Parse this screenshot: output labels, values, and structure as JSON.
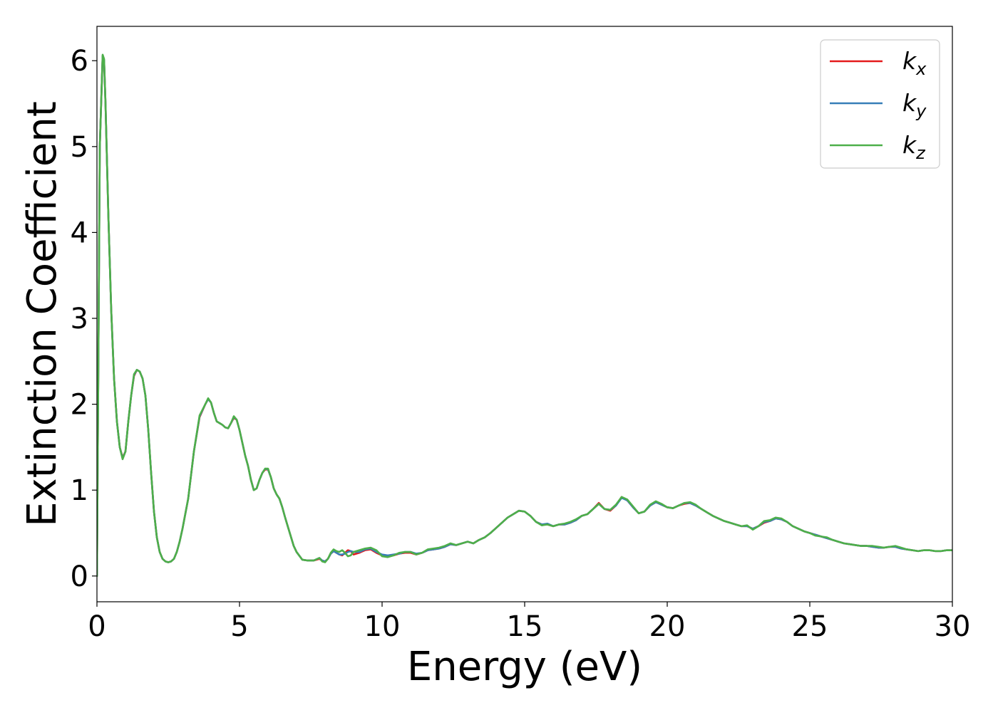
{
  "chart_data": {
    "type": "line",
    "title": "",
    "xlabel": "Energy (eV)",
    "ylabel": "Extinction Coefficient",
    "xlim": [
      0,
      30
    ],
    "ylim": [
      -0.3,
      6.4
    ],
    "xticks": [
      0,
      5,
      10,
      15,
      20,
      25,
      30
    ],
    "yticks": [
      0,
      1,
      2,
      3,
      4,
      5,
      6
    ],
    "grid": false,
    "legend_position": "top-right",
    "series": [
      {
        "name": "k_x",
        "legend_base": "k",
        "legend_sub": "x",
        "color": "#e41a1c",
        "x": [
          0,
          0.05,
          0.1,
          0.2,
          0.25,
          0.3,
          0.4,
          0.5,
          0.6,
          0.7,
          0.8,
          0.9,
          1.0,
          1.1,
          1.2,
          1.3,
          1.4,
          1.5,
          1.6,
          1.7,
          1.8,
          1.9,
          2.0,
          2.1,
          2.2,
          2.3,
          2.4,
          2.5,
          2.6,
          2.7,
          2.8,
          2.9,
          3.0,
          3.2,
          3.4,
          3.6,
          3.8,
          3.9,
          4.0,
          4.1,
          4.2,
          4.3,
          4.4,
          4.5,
          4.6,
          4.7,
          4.8,
          4.9,
          5.0,
          5.1,
          5.2,
          5.3,
          5.4,
          5.5,
          5.6,
          5.7,
          5.8,
          5.9,
          6.0,
          6.1,
          6.2,
          6.3,
          6.4,
          6.5,
          6.6,
          6.7,
          6.8,
          6.9,
          7.0,
          7.2,
          7.4,
          7.6,
          7.8,
          7.9,
          8.0,
          8.1,
          8.2,
          8.3,
          8.4,
          8.5,
          8.6,
          8.7,
          8.8,
          8.9,
          9.0,
          9.2,
          9.4,
          9.6,
          9.8,
          10.0,
          10.2,
          10.4,
          10.6,
          10.8,
          11.0,
          11.2,
          11.4,
          11.6,
          11.8,
          12.0,
          12.2,
          12.4,
          12.6,
          12.8,
          13.0,
          13.2,
          13.4,
          13.6,
          13.8,
          14.0,
          14.2,
          14.4,
          14.6,
          14.8,
          15.0,
          15.2,
          15.4,
          15.6,
          15.8,
          16.0,
          16.2,
          16.4,
          16.6,
          16.8,
          17.0,
          17.2,
          17.4,
          17.6,
          17.8,
          18.0,
          18.2,
          18.4,
          18.6,
          18.8,
          19.0,
          19.2,
          19.4,
          19.6,
          19.8,
          20.0,
          20.2,
          20.4,
          20.6,
          20.8,
          21.0,
          21.2,
          21.4,
          21.6,
          21.8,
          22.0,
          22.2,
          22.4,
          22.6,
          22.8,
          23.0,
          23.2,
          23.4,
          23.6,
          23.8,
          24.0,
          24.2,
          24.4,
          24.6,
          24.8,
          25.0,
          25.2,
          25.4,
          25.6,
          25.8,
          26.0,
          26.2,
          26.4,
          26.6,
          26.8,
          27.0,
          27.2,
          27.4,
          27.6,
          27.8,
          28.0,
          28.2,
          28.4,
          28.6,
          28.8,
          29.0,
          29.2,
          29.4,
          29.6,
          29.8,
          30.0
        ],
        "y": [
          0.0,
          2.5,
          5.0,
          6.05,
          6.0,
          5.5,
          4.2,
          3.1,
          2.3,
          1.8,
          1.5,
          1.38,
          1.45,
          1.8,
          2.1,
          2.33,
          2.4,
          2.38,
          2.3,
          2.1,
          1.7,
          1.2,
          0.75,
          0.45,
          0.28,
          0.2,
          0.17,
          0.16,
          0.17,
          0.2,
          0.28,
          0.4,
          0.55,
          0.9,
          1.45,
          1.85,
          2.0,
          2.06,
          2.02,
          1.9,
          1.8,
          1.78,
          1.76,
          1.73,
          1.72,
          1.78,
          1.84,
          1.82,
          1.7,
          1.55,
          1.4,
          1.28,
          1.12,
          1.0,
          1.02,
          1.12,
          1.2,
          1.24,
          1.24,
          1.15,
          1.02,
          0.95,
          0.9,
          0.8,
          0.68,
          0.57,
          0.46,
          0.35,
          0.28,
          0.19,
          0.18,
          0.18,
          0.2,
          0.18,
          0.17,
          0.2,
          0.26,
          0.29,
          0.27,
          0.25,
          0.24,
          0.27,
          0.3,
          0.29,
          0.25,
          0.27,
          0.3,
          0.31,
          0.27,
          0.24,
          0.24,
          0.24,
          0.26,
          0.27,
          0.27,
          0.25,
          0.27,
          0.3,
          0.31,
          0.32,
          0.34,
          0.37,
          0.36,
          0.38,
          0.4,
          0.38,
          0.42,
          0.45,
          0.5,
          0.56,
          0.62,
          0.68,
          0.72,
          0.76,
          0.75,
          0.7,
          0.63,
          0.6,
          0.6,
          0.58,
          0.6,
          0.6,
          0.62,
          0.65,
          0.7,
          0.72,
          0.78,
          0.85,
          0.78,
          0.76,
          0.82,
          0.92,
          0.88,
          0.8,
          0.73,
          0.75,
          0.82,
          0.86,
          0.83,
          0.8,
          0.79,
          0.82,
          0.84,
          0.85,
          0.82,
          0.78,
          0.74,
          0.7,
          0.67,
          0.64,
          0.62,
          0.6,
          0.58,
          0.58,
          0.55,
          0.58,
          0.62,
          0.64,
          0.67,
          0.66,
          0.63,
          0.58,
          0.55,
          0.52,
          0.5,
          0.48,
          0.46,
          0.44,
          0.42,
          0.4,
          0.38,
          0.37,
          0.36,
          0.35,
          0.35,
          0.34,
          0.33,
          0.33,
          0.34,
          0.34,
          0.32,
          0.31,
          0.3,
          0.29,
          0.3,
          0.3,
          0.29,
          0.29,
          0.3,
          0.3
        ]
      },
      {
        "name": "k_y",
        "legend_base": "k",
        "legend_sub": "y",
        "color": "#377eb8",
        "x": [
          0,
          0.05,
          0.1,
          0.2,
          0.25,
          0.3,
          0.4,
          0.5,
          0.6,
          0.7,
          0.8,
          0.9,
          1.0,
          1.1,
          1.2,
          1.3,
          1.4,
          1.5,
          1.6,
          1.7,
          1.8,
          1.9,
          2.0,
          2.1,
          2.2,
          2.3,
          2.4,
          2.5,
          2.6,
          2.7,
          2.8,
          2.9,
          3.0,
          3.2,
          3.4,
          3.6,
          3.8,
          3.9,
          4.0,
          4.1,
          4.2,
          4.3,
          4.4,
          4.5,
          4.6,
          4.7,
          4.8,
          4.9,
          5.0,
          5.1,
          5.2,
          5.3,
          5.4,
          5.5,
          5.6,
          5.7,
          5.8,
          5.9,
          6.0,
          6.1,
          6.2,
          6.3,
          6.4,
          6.5,
          6.6,
          6.7,
          6.8,
          6.9,
          7.0,
          7.2,
          7.4,
          7.6,
          7.8,
          7.9,
          8.0,
          8.1,
          8.2,
          8.3,
          8.4,
          8.5,
          8.6,
          8.7,
          8.8,
          8.9,
          9.0,
          9.2,
          9.4,
          9.6,
          9.8,
          10.0,
          10.2,
          10.4,
          10.6,
          10.8,
          11.0,
          11.2,
          11.4,
          11.6,
          11.8,
          12.0,
          12.2,
          12.4,
          12.6,
          12.8,
          13.0,
          13.2,
          13.4,
          13.6,
          13.8,
          14.0,
          14.2,
          14.4,
          14.6,
          14.8,
          15.0,
          15.2,
          15.4,
          15.6,
          15.8,
          16.0,
          16.2,
          16.4,
          16.6,
          16.8,
          17.0,
          17.2,
          17.4,
          17.6,
          17.8,
          18.0,
          18.2,
          18.4,
          18.6,
          18.8,
          19.0,
          19.2,
          19.4,
          19.6,
          19.8,
          20.0,
          20.2,
          20.4,
          20.6,
          20.8,
          21.0,
          21.2,
          21.4,
          21.6,
          21.8,
          22.0,
          22.2,
          22.4,
          22.6,
          22.8,
          23.0,
          23.2,
          23.4,
          23.6,
          23.8,
          24.0,
          24.2,
          24.4,
          24.6,
          24.8,
          25.0,
          25.2,
          25.4,
          25.6,
          25.8,
          26.0,
          26.2,
          26.4,
          26.6,
          26.8,
          27.0,
          27.2,
          27.4,
          27.6,
          27.8,
          28.0,
          28.2,
          28.4,
          28.6,
          28.8,
          29.0,
          29.2,
          29.4,
          29.6,
          29.8,
          30.0
        ],
        "y": [
          0.0,
          2.5,
          5.0,
          6.06,
          6.01,
          5.5,
          4.2,
          3.1,
          2.3,
          1.8,
          1.5,
          1.37,
          1.45,
          1.8,
          2.1,
          2.34,
          2.4,
          2.38,
          2.3,
          2.1,
          1.7,
          1.2,
          0.75,
          0.45,
          0.28,
          0.2,
          0.17,
          0.16,
          0.17,
          0.2,
          0.28,
          0.4,
          0.55,
          0.9,
          1.45,
          1.86,
          2.0,
          2.06,
          2.02,
          1.9,
          1.8,
          1.78,
          1.76,
          1.73,
          1.72,
          1.78,
          1.85,
          1.82,
          1.7,
          1.55,
          1.4,
          1.28,
          1.12,
          1.0,
          1.02,
          1.12,
          1.2,
          1.25,
          1.24,
          1.15,
          1.02,
          0.95,
          0.9,
          0.8,
          0.68,
          0.57,
          0.46,
          0.35,
          0.28,
          0.19,
          0.18,
          0.18,
          0.21,
          0.18,
          0.17,
          0.2,
          0.26,
          0.29,
          0.27,
          0.25,
          0.25,
          0.26,
          0.28,
          0.29,
          0.28,
          0.28,
          0.31,
          0.32,
          0.28,
          0.25,
          0.24,
          0.25,
          0.26,
          0.28,
          0.28,
          0.26,
          0.27,
          0.3,
          0.31,
          0.32,
          0.34,
          0.37,
          0.36,
          0.38,
          0.4,
          0.38,
          0.42,
          0.45,
          0.5,
          0.56,
          0.62,
          0.68,
          0.72,
          0.76,
          0.75,
          0.7,
          0.63,
          0.6,
          0.61,
          0.58,
          0.6,
          0.6,
          0.62,
          0.65,
          0.7,
          0.72,
          0.78,
          0.84,
          0.78,
          0.77,
          0.82,
          0.91,
          0.88,
          0.8,
          0.73,
          0.75,
          0.82,
          0.86,
          0.83,
          0.8,
          0.79,
          0.82,
          0.85,
          0.85,
          0.82,
          0.78,
          0.74,
          0.7,
          0.67,
          0.64,
          0.62,
          0.6,
          0.58,
          0.58,
          0.55,
          0.58,
          0.63,
          0.64,
          0.67,
          0.66,
          0.63,
          0.58,
          0.55,
          0.52,
          0.5,
          0.48,
          0.46,
          0.44,
          0.42,
          0.4,
          0.38,
          0.37,
          0.36,
          0.35,
          0.35,
          0.34,
          0.33,
          0.33,
          0.34,
          0.34,
          0.32,
          0.31,
          0.3,
          0.29,
          0.3,
          0.3,
          0.29,
          0.29,
          0.3,
          0.3
        ]
      },
      {
        "name": "k_z",
        "legend_base": "k",
        "legend_sub": "z",
        "color": "#4daf4a",
        "x": [
          0,
          0.05,
          0.1,
          0.2,
          0.25,
          0.3,
          0.4,
          0.5,
          0.6,
          0.7,
          0.8,
          0.9,
          1.0,
          1.1,
          1.2,
          1.3,
          1.4,
          1.5,
          1.6,
          1.7,
          1.8,
          1.9,
          2.0,
          2.1,
          2.2,
          2.3,
          2.4,
          2.5,
          2.6,
          2.7,
          2.8,
          2.9,
          3.0,
          3.2,
          3.4,
          3.6,
          3.8,
          3.9,
          4.0,
          4.1,
          4.2,
          4.3,
          4.4,
          4.5,
          4.6,
          4.7,
          4.8,
          4.9,
          5.0,
          5.1,
          5.2,
          5.3,
          5.4,
          5.5,
          5.6,
          5.7,
          5.8,
          5.9,
          6.0,
          6.1,
          6.2,
          6.3,
          6.4,
          6.5,
          6.6,
          6.7,
          6.8,
          6.9,
          7.0,
          7.2,
          7.4,
          7.6,
          7.8,
          7.9,
          8.0,
          8.1,
          8.2,
          8.3,
          8.4,
          8.5,
          8.6,
          8.7,
          8.8,
          8.9,
          9.0,
          9.2,
          9.4,
          9.6,
          9.8,
          10.0,
          10.2,
          10.4,
          10.6,
          10.8,
          11.0,
          11.2,
          11.4,
          11.6,
          11.8,
          12.0,
          12.2,
          12.4,
          12.6,
          12.8,
          13.0,
          13.2,
          13.4,
          13.6,
          13.8,
          14.0,
          14.2,
          14.4,
          14.6,
          14.8,
          15.0,
          15.2,
          15.4,
          15.6,
          15.8,
          16.0,
          16.2,
          16.4,
          16.6,
          16.8,
          17.0,
          17.2,
          17.4,
          17.6,
          17.8,
          18.0,
          18.2,
          18.4,
          18.6,
          18.8,
          19.0,
          19.2,
          19.4,
          19.6,
          19.8,
          20.0,
          20.2,
          20.4,
          20.6,
          20.8,
          21.0,
          21.2,
          21.4,
          21.6,
          21.8,
          22.0,
          22.2,
          22.4,
          22.6,
          22.8,
          23.0,
          23.2,
          23.4,
          23.6,
          23.8,
          24.0,
          24.2,
          24.4,
          24.6,
          24.8,
          25.0,
          25.2,
          25.4,
          25.6,
          25.8,
          26.0,
          26.2,
          26.4,
          26.6,
          26.8,
          27.0,
          27.2,
          27.4,
          27.6,
          27.8,
          28.0,
          28.2,
          28.4,
          28.6,
          28.8,
          29.0,
          29.2,
          29.4,
          29.6,
          29.8,
          30.0
        ],
        "y": [
          0.0,
          2.5,
          5.0,
          6.07,
          6.02,
          5.5,
          4.2,
          3.1,
          2.3,
          1.8,
          1.5,
          1.36,
          1.45,
          1.8,
          2.1,
          2.35,
          2.4,
          2.38,
          2.3,
          2.1,
          1.7,
          1.2,
          0.75,
          0.45,
          0.28,
          0.2,
          0.17,
          0.16,
          0.17,
          0.2,
          0.28,
          0.4,
          0.55,
          0.9,
          1.45,
          1.87,
          2.0,
          2.07,
          2.02,
          1.9,
          1.8,
          1.78,
          1.76,
          1.73,
          1.72,
          1.78,
          1.86,
          1.82,
          1.7,
          1.55,
          1.4,
          1.28,
          1.12,
          1.0,
          1.02,
          1.12,
          1.2,
          1.25,
          1.25,
          1.15,
          1.02,
          0.95,
          0.9,
          0.8,
          0.68,
          0.57,
          0.46,
          0.35,
          0.28,
          0.19,
          0.18,
          0.18,
          0.21,
          0.17,
          0.16,
          0.2,
          0.27,
          0.31,
          0.29,
          0.28,
          0.3,
          0.27,
          0.23,
          0.24,
          0.28,
          0.3,
          0.32,
          0.33,
          0.3,
          0.23,
          0.22,
          0.24,
          0.27,
          0.28,
          0.28,
          0.25,
          0.27,
          0.31,
          0.32,
          0.33,
          0.35,
          0.38,
          0.36,
          0.38,
          0.4,
          0.38,
          0.42,
          0.45,
          0.5,
          0.56,
          0.62,
          0.68,
          0.72,
          0.76,
          0.75,
          0.7,
          0.63,
          0.59,
          0.6,
          0.58,
          0.6,
          0.61,
          0.63,
          0.66,
          0.7,
          0.72,
          0.78,
          0.84,
          0.78,
          0.77,
          0.83,
          0.92,
          0.89,
          0.81,
          0.73,
          0.75,
          0.83,
          0.87,
          0.84,
          0.8,
          0.79,
          0.82,
          0.85,
          0.86,
          0.83,
          0.78,
          0.74,
          0.7,
          0.67,
          0.64,
          0.62,
          0.6,
          0.58,
          0.59,
          0.54,
          0.58,
          0.64,
          0.65,
          0.68,
          0.67,
          0.63,
          0.58,
          0.55,
          0.52,
          0.5,
          0.47,
          0.46,
          0.45,
          0.42,
          0.4,
          0.38,
          0.37,
          0.36,
          0.35,
          0.35,
          0.35,
          0.34,
          0.33,
          0.34,
          0.35,
          0.33,
          0.31,
          0.3,
          0.29,
          0.3,
          0.3,
          0.29,
          0.29,
          0.3,
          0.3
        ]
      }
    ]
  }
}
